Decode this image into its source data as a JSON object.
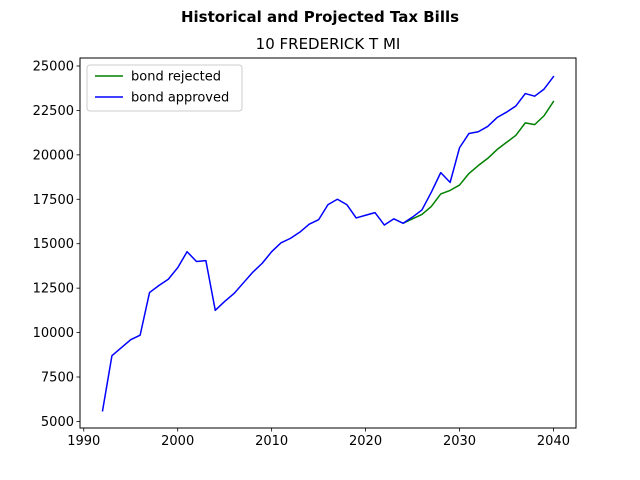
{
  "chart_data": {
    "type": "line",
    "suptitle": "Historical and Projected Tax Bills",
    "title": "10 FREDERICK T MI",
    "xlabel": "",
    "ylabel": "",
    "xlim": [
      1989.6,
      2042.4
    ],
    "ylim": [
      4630,
      25450
    ],
    "xticks": [
      1990,
      2000,
      2010,
      2020,
      2030,
      2040
    ],
    "yticks": [
      5000,
      7500,
      10000,
      12500,
      15000,
      17500,
      20000,
      22500,
      25000
    ],
    "legend_position": "upper left",
    "series": [
      {
        "name": "bond rejected",
        "color": "#008000",
        "x": [
          2024,
          2025,
          2026,
          2027,
          2028,
          2029,
          2030,
          2031,
          2032,
          2033,
          2034,
          2035,
          2036,
          2037,
          2038,
          2039,
          2040
        ],
        "y": [
          16150,
          16400,
          16650,
          17100,
          17800,
          18000,
          18300,
          18950,
          19400,
          19800,
          20300,
          20700,
          21100,
          21800,
          21700,
          22200,
          23000
        ]
      },
      {
        "name": "bond approved",
        "color": "#0000ff",
        "x": [
          1992,
          1993,
          1994,
          1995,
          1996,
          1997,
          1998,
          1999,
          2000,
          2001,
          2002,
          2003,
          2004,
          2005,
          2006,
          2007,
          2008,
          2009,
          2010,
          2011,
          2012,
          2013,
          2014,
          2015,
          2016,
          2017,
          2018,
          2019,
          2020,
          2021,
          2022,
          2023,
          2024,
          2025,
          2026,
          2027,
          2028,
          2029,
          2030,
          2031,
          2032,
          2033,
          2034,
          2035,
          2036,
          2037,
          2038,
          2039,
          2040
        ],
        "y": [
          5600,
          8700,
          9150,
          9600,
          9850,
          12250,
          12650,
          13000,
          13650,
          14550,
          14000,
          14050,
          11250,
          11750,
          12200,
          12800,
          13400,
          13900,
          14550,
          15050,
          15300,
          15650,
          16100,
          16350,
          17200,
          17500,
          17200,
          16450,
          16600,
          16750,
          16050,
          16400,
          16150,
          16500,
          16900,
          17900,
          19000,
          18450,
          20400,
          21200,
          21300,
          21600,
          22100,
          22400,
          22750,
          23450,
          23300,
          23700,
          24400
        ]
      }
    ]
  }
}
